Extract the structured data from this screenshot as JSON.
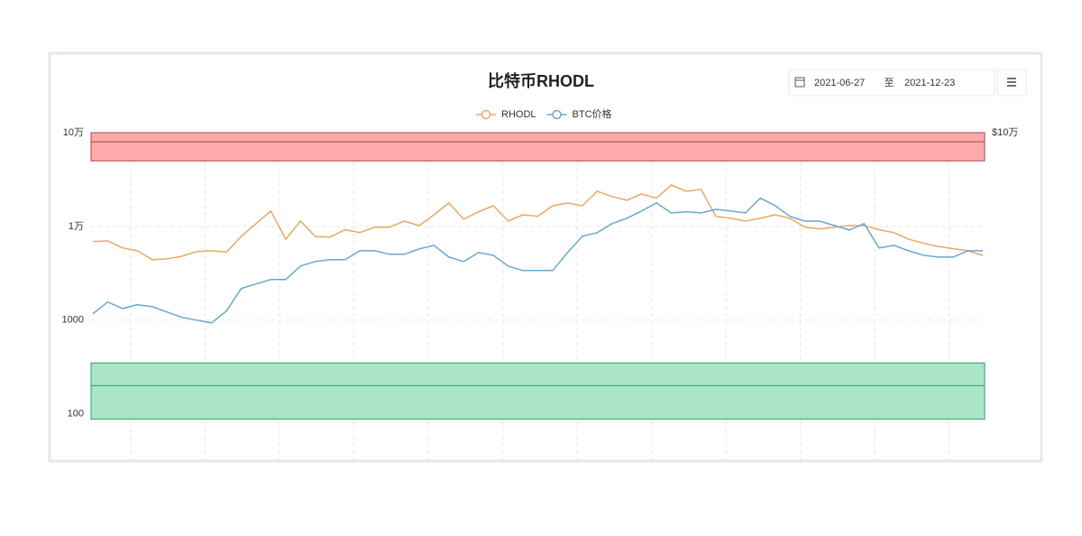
{
  "chart_data": {
    "type": "line",
    "title": "比特币RHODL",
    "log_y": true,
    "grid": true,
    "legend": "top",
    "ylim": [
      40,
      100000
    ],
    "yticks": [
      {
        "value": 100000,
        "label": "10万"
      },
      {
        "value": 10000,
        "label": "1万"
      },
      1000,
      100
    ],
    "y2lim": [
      40,
      100000
    ],
    "y2ticks": [
      {
        "value": 100000,
        "label": "$10万"
      }
    ],
    "bands": [
      {
        "from": 50000,
        "to": 100000,
        "line": 80000,
        "color": "#ffaaaa",
        "line_color": "#a04848"
      },
      {
        "from": 88,
        "to": 350,
        "line": 200,
        "color": "#abe5c8",
        "line_color": "#2f9e68"
      }
    ],
    "series": [
      {
        "name": "RHODL",
        "color": "#e8a865",
        "values": [
          6900,
          7000,
          5900,
          5500,
          4400,
          4500,
          4800,
          5400,
          5500,
          5300,
          7800,
          10700,
          14600,
          7300,
          11400,
          7800,
          7700,
          9200,
          8600,
          9800,
          9800,
          11400,
          10200,
          13300,
          17800,
          11900,
          14300,
          16600,
          11400,
          13300,
          12800,
          16600,
          17800,
          16600,
          23700,
          20800,
          19000,
          22200,
          20000,
          27700,
          23700,
          24800,
          12800,
          12200,
          11400,
          12200,
          13300,
          12200,
          9800,
          9400,
          9800,
          10200,
          10200,
          9200,
          8600,
          7300,
          6600,
          6100,
          5800,
          5500,
          4900
        ]
      },
      {
        "name": "BTC价格",
        "color": "#68a9cc",
        "axis": "y2",
        "values": [
          1170,
          1560,
          1330,
          1460,
          1390,
          1220,
          1070,
          1000,
          935,
          1250,
          2170,
          2430,
          2710,
          2710,
          3780,
          4220,
          4410,
          4410,
          5500,
          5500,
          5040,
          5040,
          5750,
          6280,
          4710,
          4220,
          5260,
          4920,
          3780,
          3380,
          3380,
          3380,
          5260,
          7840,
          8570,
          10700,
          12200,
          14600,
          17800,
          13900,
          14300,
          13900,
          15200,
          14600,
          13900,
          20000,
          16600,
          12800,
          11400,
          11400,
          10200,
          9150,
          10700,
          5880,
          6280,
          5500,
          4920,
          4710,
          4710,
          5500,
          5500
        ]
      }
    ]
  },
  "date_picker": {
    "start": "2021-06-27",
    "separator": "至",
    "end": "2021-12-23"
  }
}
